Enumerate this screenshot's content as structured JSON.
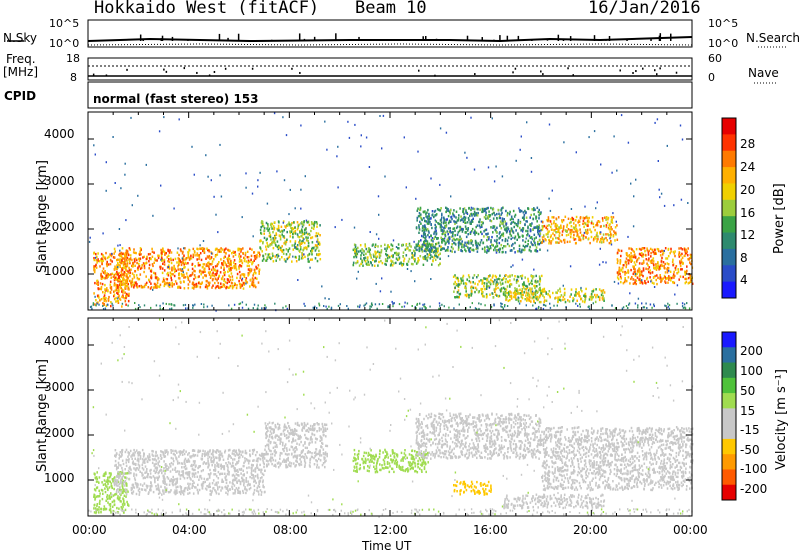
{
  "header": {
    "station": "Hokkaido West (fitACF)",
    "beam": "Beam 10",
    "date": "16/Jan/2016"
  },
  "top_panel": {
    "left_label": "N.Sky",
    "right_label": "N.Search",
    "left_ticks": [
      "10^5",
      "10^0"
    ],
    "right_ticks": [
      "10^5",
      "10^0"
    ]
  },
  "freq_panel": {
    "left_label_1": "Freq.",
    "left_label_2": "[MHz]",
    "right_label": "Nave",
    "left_ticks": [
      "18",
      "8"
    ],
    "right_ticks": [
      "60",
      "0"
    ]
  },
  "cpid": {
    "label": "CPID",
    "value": "normal (fast stereo) 153"
  },
  "power_colorbar": {
    "label": "Power [dB]",
    "ticks": [
      "28",
      "24",
      "20",
      "16",
      "12",
      "8",
      "4"
    ],
    "colors": [
      "#e60000",
      "#ff3300",
      "#ff7a00",
      "#ffb000",
      "#f0d000",
      "#9ccd3c",
      "#3aa345",
      "#2e8a6e",
      "#2a6f9f",
      "#2a4cc8",
      "#1a1aff"
    ]
  },
  "velocity_colorbar": {
    "label": "Velocity [m s⁻¹]",
    "ticks": [
      "200",
      "100",
      "50",
      "15",
      "-15",
      "-50",
      "-100",
      "-200"
    ],
    "colors": [
      "#1a1aff",
      "#2a6f9f",
      "#2e8a4e",
      "#4fc23a",
      "#a0dc50",
      "#c8c8c8",
      "#c8c8c8",
      "#ffc800",
      "#ff9a00",
      "#ff5a00",
      "#e60000"
    ]
  },
  "x_axis": {
    "label": "Time UT",
    "ticks": [
      "00:00",
      "04:00",
      "08:00",
      "12:00",
      "16:00",
      "20:00",
      "00:00"
    ]
  },
  "chart_data": [
    {
      "type": "heatmap",
      "title": "Power",
      "ylabel": "Slant Range [km]",
      "xlabel": "",
      "y_ticks": [
        "1000",
        "2000",
        "3000",
        "4000"
      ],
      "ylim": [
        200,
        4600
      ],
      "xlim": [
        0,
        24
      ],
      "x_unit": "hours UT",
      "echo_regions": [
        {
          "t": [
            0.2,
            1.6
          ],
          "range": [
            300,
            1500
          ],
          "power_db": 24
        },
        {
          "t": [
            1.0,
            6.8
          ],
          "range": [
            700,
            1600
          ],
          "power_db": 24
        },
        {
          "t": [
            6.8,
            9.2
          ],
          "range": [
            1300,
            2200
          ],
          "power_db": 16
        },
        {
          "t": [
            10.5,
            14.0
          ],
          "range": [
            1200,
            1700
          ],
          "power_db": 14
        },
        {
          "t": [
            13.0,
            18.0
          ],
          "range": [
            1500,
            2500
          ],
          "power_db": 10
        },
        {
          "t": [
            14.5,
            18.0
          ],
          "range": [
            500,
            1000
          ],
          "power_db": 16
        },
        {
          "t": [
            16.5,
            20.5
          ],
          "range": [
            400,
            700
          ],
          "power_db": 18
        },
        {
          "t": [
            18.0,
            21.0
          ],
          "range": [
            1700,
            2300
          ],
          "power_db": 22
        },
        {
          "t": [
            21.0,
            24.0
          ],
          "range": [
            800,
            1600
          ],
          "power_db": 24
        }
      ]
    },
    {
      "type": "heatmap",
      "title": "Velocity",
      "ylabel": "Slant Range [km]",
      "xlabel": "Time UT",
      "y_ticks": [
        "1000",
        "2000",
        "3000",
        "4000"
      ],
      "ylim": [
        200,
        4600
      ],
      "xlim": [
        0,
        24
      ],
      "x_unit": "hours UT",
      "echo_regions": [
        {
          "t": [
            0.2,
            1.6
          ],
          "range": [
            300,
            1200
          ],
          "velocity_ms": 40
        },
        {
          "t": [
            1.0,
            7.0
          ],
          "range": [
            700,
            1700
          ],
          "velocity_ms": 0
        },
        {
          "t": [
            7.0,
            9.5
          ],
          "range": [
            1300,
            2300
          ],
          "velocity_ms": 0
        },
        {
          "t": [
            10.5,
            13.5
          ],
          "range": [
            1200,
            1700
          ],
          "velocity_ms": 40
        },
        {
          "t": [
            14.5,
            16.0
          ],
          "range": [
            700,
            1000
          ],
          "velocity_ms": -80
        },
        {
          "t": [
            13.0,
            18.0
          ],
          "range": [
            1500,
            2500
          ],
          "velocity_ms": 0
        },
        {
          "t": [
            16.5,
            20.5
          ],
          "range": [
            400,
            700
          ],
          "velocity_ms": -40
        },
        {
          "t": [
            18.0,
            24.0
          ],
          "range": [
            800,
            2200
          ],
          "velocity_ms": 0
        }
      ]
    }
  ]
}
